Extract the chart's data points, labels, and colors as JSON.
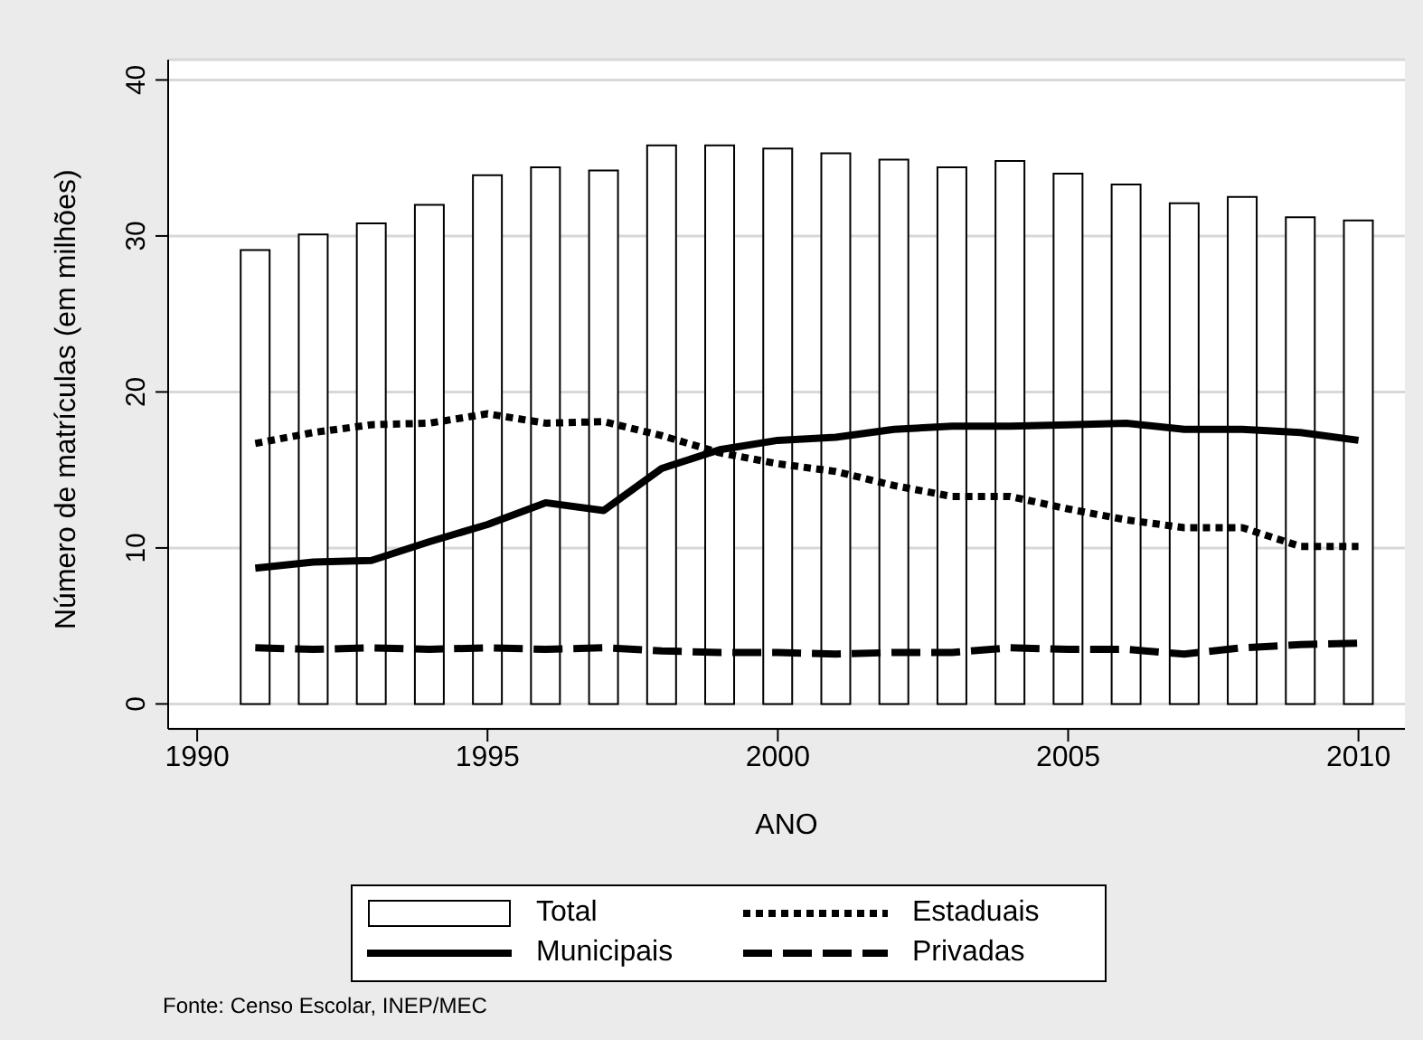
{
  "chart_data": {
    "type": "line",
    "xlabel": "ANO",
    "ylabel": "Número de matrículas (em milhões)",
    "annotations": [
      "Fonte: Censo Escolar, INEP/MEC"
    ],
    "x": [
      1991,
      1992,
      1993,
      1994,
      1995,
      1996,
      1997,
      1998,
      1999,
      2000,
      2001,
      2002,
      2003,
      2004,
      2005,
      2006,
      2007,
      2008,
      2009,
      2010
    ],
    "series": [
      {
        "name": "Total",
        "type": "bar",
        "color": "#ffffff",
        "values": [
          29.1,
          30.1,
          30.8,
          32.0,
          33.9,
          34.4,
          34.2,
          35.8,
          35.8,
          35.6,
          35.3,
          34.9,
          34.4,
          34.8,
          34.0,
          33.3,
          32.1,
          32.5,
          31.2,
          31.0
        ]
      },
      {
        "name": "Estaduais",
        "line_style": "dotted",
        "color": "#000000",
        "values": [
          16.7,
          17.4,
          17.9,
          18.0,
          18.6,
          18.0,
          18.1,
          17.2,
          16.1,
          15.4,
          14.9,
          14.0,
          13.3,
          13.3,
          12.5,
          11.8,
          11.3,
          11.3,
          10.1,
          10.1
        ]
      },
      {
        "name": "Municipais",
        "line_style": "solid",
        "color": "#000000",
        "values": [
          8.7,
          9.1,
          9.2,
          10.4,
          11.5,
          12.9,
          12.4,
          15.1,
          16.3,
          16.9,
          17.1,
          17.6,
          17.8,
          17.8,
          17.9,
          18.0,
          17.6,
          17.6,
          17.4,
          16.9
        ]
      },
      {
        "name": "Privadas",
        "line_style": "dashed",
        "color": "#000000",
        "values": [
          3.6,
          3.5,
          3.6,
          3.5,
          3.6,
          3.5,
          3.6,
          3.4,
          3.3,
          3.3,
          3.2,
          3.3,
          3.3,
          3.6,
          3.5,
          3.5,
          3.2,
          3.6,
          3.8,
          3.9
        ]
      }
    ],
    "xlim": [
      1989.5,
      2010.8
    ],
    "xticks": [
      1990,
      1995,
      2000,
      2005,
      2010
    ],
    "ylim": [
      -1.6,
      41.3
    ],
    "yticks": [
      0,
      10,
      20,
      30,
      40
    ],
    "grid": "y",
    "legend": "bottom",
    "marker": "none"
  }
}
